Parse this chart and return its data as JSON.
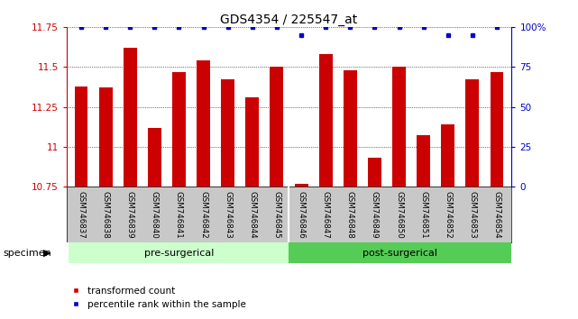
{
  "title": "GDS4354 / 225547_at",
  "samples": [
    "GSM746837",
    "GSM746838",
    "GSM746839",
    "GSM746840",
    "GSM746841",
    "GSM746842",
    "GSM746843",
    "GSM746844",
    "GSM746845",
    "GSM746846",
    "GSM746847",
    "GSM746848",
    "GSM746849",
    "GSM746850",
    "GSM746851",
    "GSM746852",
    "GSM746853",
    "GSM746854"
  ],
  "bar_values": [
    11.38,
    11.37,
    11.62,
    11.12,
    11.47,
    11.54,
    11.42,
    11.31,
    11.5,
    10.77,
    11.58,
    11.48,
    10.93,
    11.5,
    11.07,
    11.14,
    11.42,
    11.47
  ],
  "percentile_values": [
    100,
    100,
    100,
    100,
    100,
    100,
    100,
    100,
    100,
    95,
    100,
    100,
    100,
    100,
    100,
    95,
    95,
    100
  ],
  "bar_color": "#cc0000",
  "percentile_color": "#0000cc",
  "ylim_left": [
    10.75,
    11.75
  ],
  "ylim_right": [
    0,
    100
  ],
  "yticks_left": [
    10.75,
    11.0,
    11.25,
    11.5,
    11.75
  ],
  "yticks_right": [
    0,
    25,
    50,
    75,
    100
  ],
  "ytick_labels_left": [
    "10.75",
    "11",
    "11.25",
    "11.5",
    "11.75"
  ],
  "ytick_labels_right": [
    "0",
    "25",
    "50",
    "75",
    "100%"
  ],
  "left_yaxis_color": "#cc0000",
  "right_yaxis_color": "#0000cc",
  "n_pre": 9,
  "n_post": 9,
  "pre_surgical_label": "pre-surgerical",
  "post_surgical_label": "post-surgerical",
  "pre_surgical_color": "#ccffcc",
  "post_surgical_color": "#55cc55",
  "specimen_label": "specimen",
  "legend_bar_label": "transformed count",
  "legend_dot_label": "percentile rank within the sample",
  "background_color": "#ffffff",
  "plot_bg_color": "#ffffff",
  "tick_label_area_color": "#c8c8c8",
  "title_fontsize": 10,
  "bar_width": 0.55
}
